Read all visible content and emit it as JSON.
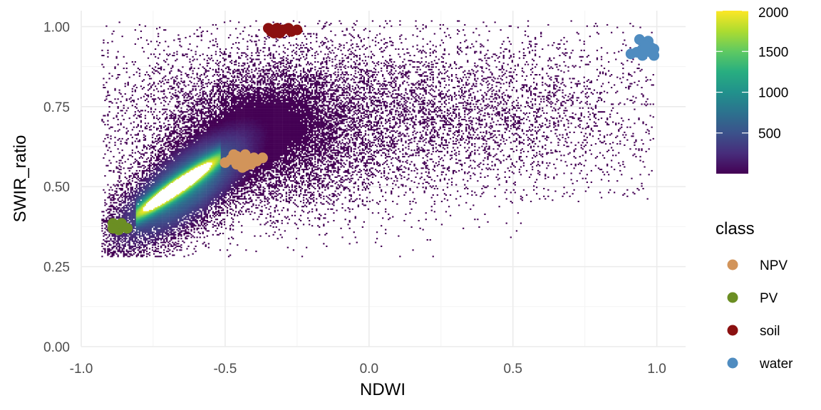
{
  "chart_data": {
    "type": "scatter",
    "title": "",
    "xlabel": "NDWI",
    "ylabel": "SWIR_ratio",
    "xlim": [
      -1.0,
      1.1
    ],
    "ylim": [
      0.0,
      1.05
    ],
    "x_ticks": [
      -1.0,
      -0.5,
      0.0,
      0.5,
      1.0
    ],
    "x_tick_labels": [
      "-1.0",
      "-0.5",
      "0.0",
      "0.5",
      "1.0"
    ],
    "y_ticks": [
      0.0,
      0.25,
      0.5,
      0.75,
      1.0
    ],
    "y_tick_labels": [
      "0.00",
      "0.25",
      "0.50",
      "0.75",
      "1.00"
    ],
    "grid": true,
    "density_layer": {
      "type": "heatmap",
      "colormap": "viridis",
      "count_range": [
        1,
        2000
      ],
      "core_ridge": {
        "x": [
          -0.78,
          -0.55
        ],
        "y": [
          0.43,
          0.57
        ]
      },
      "colorbar_ticks": [
        500,
        1000,
        1500,
        2000
      ],
      "colorbar_tick_labels": [
        "500",
        "1000",
        "1500",
        "2000"
      ]
    },
    "legend": {
      "title": "class",
      "position": "right",
      "entries": [
        {
          "label": "NPV",
          "color": "#D2945A"
        },
        {
          "label": "PV",
          "color": "#6B8E23"
        },
        {
          "label": "soil",
          "color": "#8B1010"
        },
        {
          "label": "water",
          "color": "#4F8CC0"
        }
      ]
    },
    "series": [
      {
        "name": "NPV",
        "color": "#D2945A",
        "points": [
          {
            "x": -0.5,
            "y": 0.575
          },
          {
            "x": -0.48,
            "y": 0.585
          },
          {
            "x": -0.47,
            "y": 0.6
          },
          {
            "x": -0.46,
            "y": 0.57
          },
          {
            "x": -0.45,
            "y": 0.59
          },
          {
            "x": -0.44,
            "y": 0.56
          },
          {
            "x": -0.43,
            "y": 0.6
          },
          {
            "x": -0.42,
            "y": 0.58
          },
          {
            "x": -0.41,
            "y": 0.57
          },
          {
            "x": -0.4,
            "y": 0.59
          },
          {
            "x": -0.39,
            "y": 0.58
          },
          {
            "x": -0.46,
            "y": 0.595
          },
          {
            "x": -0.43,
            "y": 0.565
          },
          {
            "x": -0.37,
            "y": 0.59
          }
        ]
      },
      {
        "name": "PV",
        "color": "#6B8E23",
        "points": [
          {
            "x": -0.89,
            "y": 0.385
          },
          {
            "x": -0.88,
            "y": 0.37
          },
          {
            "x": -0.87,
            "y": 0.38
          },
          {
            "x": -0.87,
            "y": 0.365
          },
          {
            "x": -0.86,
            "y": 0.385
          },
          {
            "x": -0.84,
            "y": 0.37
          },
          {
            "x": -0.89,
            "y": 0.37
          }
        ]
      },
      {
        "name": "soil",
        "color": "#8B1010",
        "points": [
          {
            "x": -0.35,
            "y": 0.995
          },
          {
            "x": -0.34,
            "y": 0.985
          },
          {
            "x": -0.33,
            "y": 0.99
          },
          {
            "x": -0.32,
            "y": 0.995
          },
          {
            "x": -0.31,
            "y": 0.98
          },
          {
            "x": -0.3,
            "y": 0.99
          },
          {
            "x": -0.28,
            "y": 0.995
          },
          {
            "x": -0.27,
            "y": 0.985
          },
          {
            "x": -0.25,
            "y": 0.99
          },
          {
            "x": -0.33,
            "y": 0.98
          }
        ]
      },
      {
        "name": "water",
        "color": "#4F8CC0",
        "points": [
          {
            "x": 0.91,
            "y": 0.915
          },
          {
            "x": 0.93,
            "y": 0.92
          },
          {
            "x": 0.94,
            "y": 0.96
          },
          {
            "x": 0.95,
            "y": 0.93
          },
          {
            "x": 0.95,
            "y": 0.91
          },
          {
            "x": 0.96,
            "y": 0.925
          },
          {
            "x": 0.97,
            "y": 0.955
          },
          {
            "x": 0.97,
            "y": 0.93
          },
          {
            "x": 0.98,
            "y": 0.92
          },
          {
            "x": 0.98,
            "y": 0.935
          },
          {
            "x": 0.99,
            "y": 0.91
          },
          {
            "x": 0.99,
            "y": 0.93
          },
          {
            "x": 0.96,
            "y": 0.94
          }
        ]
      }
    ]
  }
}
